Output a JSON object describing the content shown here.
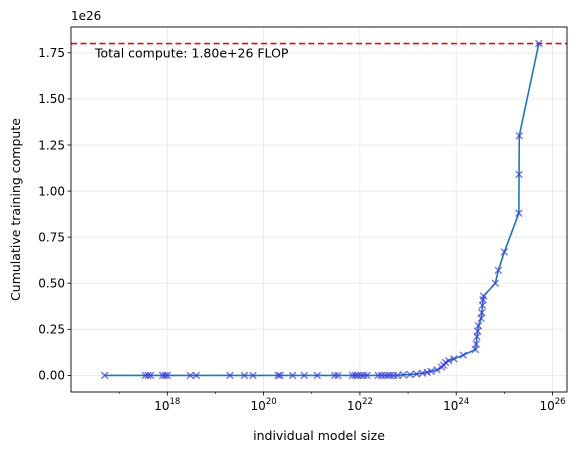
{
  "chart_data": {
    "type": "scatter",
    "xlabel": "individual model size",
    "ylabel": "Cumulative training compute",
    "y_offset_label": "1e26",
    "x_scale": "log",
    "xlim": [
      1e+16,
      2e+26
    ],
    "ylim": [
      -9e+24,
      1.89e+26
    ],
    "grid": true,
    "x_ticks": [
      {
        "value": 1e+18,
        "base": "10",
        "exp": "18"
      },
      {
        "value": 1e+20,
        "base": "10",
        "exp": "20"
      },
      {
        "value": 1e+22,
        "base": "10",
        "exp": "22"
      },
      {
        "value": 1e+24,
        "base": "10",
        "exp": "24"
      },
      {
        "value": 1e+26,
        "base": "10",
        "exp": "26"
      }
    ],
    "y_ticks": [
      {
        "value": 0.0,
        "label": "0.00"
      },
      {
        "value": 2.5e+25,
        "label": "0.25"
      },
      {
        "value": 5e+25,
        "label": "0.50"
      },
      {
        "value": 7.5e+25,
        "label": "0.75"
      },
      {
        "value": 1e+26,
        "label": "1.00"
      },
      {
        "value": 1.25e+26,
        "label": "1.25"
      },
      {
        "value": 1.5e+26,
        "label": "1.50"
      },
      {
        "value": 1.75e+26,
        "label": "1.75"
      }
    ],
    "reference_line": {
      "y": 1.8e+26,
      "color": "#e01010",
      "style": "dashed"
    },
    "annotation": "Total compute: 1.80e+26 FLOP",
    "line_color": "#1f77b4",
    "marker_color": "#3a3ad8",
    "points": [
      {
        "x": 5e+16,
        "y": 0
      },
      {
        "x": 3.5e+17,
        "y": 0
      },
      {
        "x": 4e+17,
        "y": 0
      },
      {
        "x": 4.5e+17,
        "y": 0
      },
      {
        "x": 8e+17,
        "y": 0
      },
      {
        "x": 9e+17,
        "y": 0
      },
      {
        "x": 1e+18,
        "y": 0
      },
      {
        "x": 3e+18,
        "y": 0
      },
      {
        "x": 4e+18,
        "y": 0
      },
      {
        "x": 2e+19,
        "y": 0
      },
      {
        "x": 4e+19,
        "y": 0
      },
      {
        "x": 6e+19,
        "y": 0
      },
      {
        "x": 2e+20,
        "y": 0
      },
      {
        "x": 2.2e+20,
        "y": 0
      },
      {
        "x": 4e+20,
        "y": 0
      },
      {
        "x": 7e+20,
        "y": 0
      },
      {
        "x": 1.3e+21,
        "y": 0
      },
      {
        "x": 3e+21,
        "y": 0
      },
      {
        "x": 3.5e+21,
        "y": 0
      },
      {
        "x": 7e+21,
        "y": 0
      },
      {
        "x": 8e+21,
        "y": 0
      },
      {
        "x": 9e+21,
        "y": 0
      },
      {
        "x": 1.05e+22,
        "y": 0
      },
      {
        "x": 1.2e+22,
        "y": 0
      },
      {
        "x": 1.4e+22,
        "y": 0
      },
      {
        "x": 2.4e+22,
        "y": 0
      },
      {
        "x": 2.8e+22,
        "y": 0
      },
      {
        "x": 3.3e+22,
        "y": 0
      },
      {
        "x": 3.8e+22,
        "y": 0
      },
      {
        "x": 4.3e+22,
        "y": 0
      },
      {
        "x": 5e+22,
        "y": 0
      },
      {
        "x": 6e+22,
        "y": 0
      },
      {
        "x": 8e+22,
        "y": 3e+23
      },
      {
        "x": 1.1e+23,
        "y": 5e+23
      },
      {
        "x": 1.5e+23,
        "y": 8e+23
      },
      {
        "x": 2e+23,
        "y": 1.2e+24
      },
      {
        "x": 2.5e+23,
        "y": 1.7e+24
      },
      {
        "x": 3e+23,
        "y": 2.2e+24
      },
      {
        "x": 4e+23,
        "y": 3e+24
      },
      {
        "x": 5e+23,
        "y": 4.5e+24
      },
      {
        "x": 5.5e+23,
        "y": 5.5e+24
      },
      {
        "x": 6e+23,
        "y": 7e+24
      },
      {
        "x": 7e+23,
        "y": 8e+24
      },
      {
        "x": 9e+23,
        "y": 9e+24
      },
      {
        "x": 1.4e+24,
        "y": 1.1e+25
      },
      {
        "x": 2.5e+24,
        "y": 1.4e+25
      },
      {
        "x": 2.6e+24,
        "y": 1.7e+25
      },
      {
        "x": 2.7e+24,
        "y": 2.1e+25
      },
      {
        "x": 2.8e+24,
        "y": 2.4e+25
      },
      {
        "x": 2.9e+24,
        "y": 2.7e+25
      },
      {
        "x": 3.3e+24,
        "y": 3.1e+25
      },
      {
        "x": 3.4e+24,
        "y": 3.4e+25
      },
      {
        "x": 3.5e+24,
        "y": 3.8e+25
      },
      {
        "x": 3.6e+24,
        "y": 4.1e+25
      },
      {
        "x": 3.7e+24,
        "y": 4.3e+25
      },
      {
        "x": 6.5e+24,
        "y": 5e+25
      },
      {
        "x": 7.5e+24,
        "y": 5.7e+25
      },
      {
        "x": 1e+25,
        "y": 6.7e+25
      },
      {
        "x": 2e+25,
        "y": 8.8e+25
      },
      {
        "x": 2.02e+25,
        "y": 1.09e+26
      },
      {
        "x": 2.04e+25,
        "y": 1.3e+26
      },
      {
        "x": 5.2e+25,
        "y": 1.8e+26
      }
    ]
  }
}
